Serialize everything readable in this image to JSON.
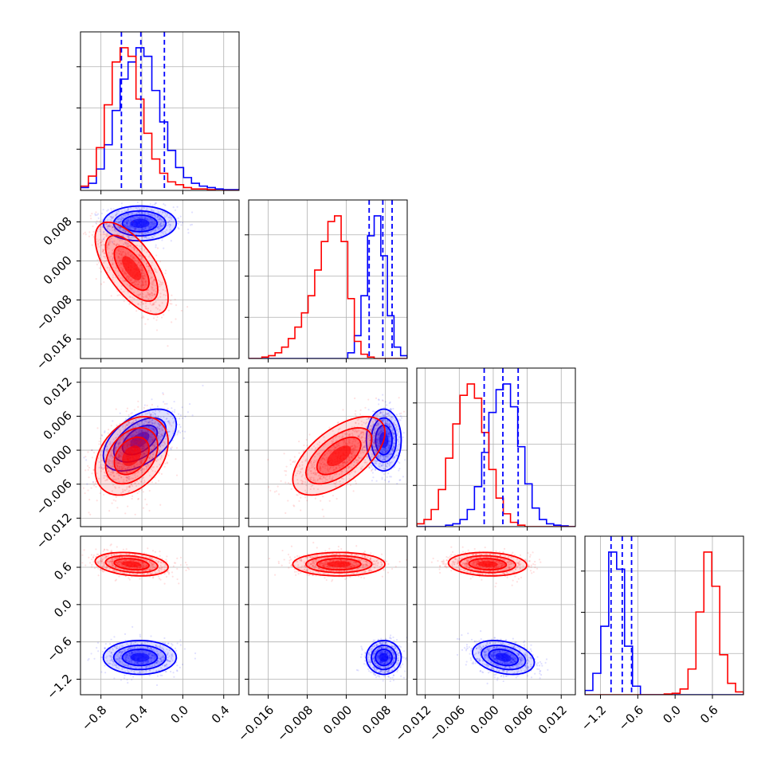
{
  "colors": {
    "series_a": "#0000ff",
    "series_b": "#ff0000",
    "grid": "#b0b0b0",
    "axes": "#000000"
  },
  "chart_data": {
    "type": "corner",
    "params": 4,
    "grid": true,
    "axes": [
      {
        "range": [
          -1.0,
          0.55
        ],
        "ticks": [
          -0.8,
          -0.4,
          0.0,
          0.4
        ],
        "tick_labels": [
          "−0.8",
          "−0.4",
          "0.0",
          "0.4"
        ]
      },
      {
        "range": [
          -0.02,
          0.0125
        ],
        "ticks": [
          -0.016,
          -0.008,
          0.0,
          0.008
        ],
        "tick_labels": [
          "−0.016",
          "−0.008",
          "0.000",
          "0.008"
        ]
      },
      {
        "range": [
          -0.0135,
          0.0145
        ],
        "ticks": [
          -0.012,
          -0.006,
          0.0,
          0.006,
          0.012
        ],
        "tick_labels": [
          "−0.012",
          "−0.006",
          "0.000",
          "0.006",
          "0.012"
        ]
      },
      {
        "range": [
          -1.45,
          1.1
        ],
        "ticks": [
          -1.2,
          -0.6,
          0.0,
          0.6
        ],
        "tick_labels": [
          "−1.2",
          "−0.6",
          "0.0",
          "0.6"
        ]
      }
    ],
    "series": [
      {
        "color": "#0000ff",
        "quantiles": [
          [
            -0.6,
            -0.41,
            -0.18
          ],
          [
            0.0047,
            0.0075,
            0.0094
          ],
          [
            -0.0016,
            0.0017,
            0.0044
          ],
          [
            -1.03,
            -0.85,
            -0.7
          ]
        ],
        "means": [
          -0.42,
          0.0077,
          0.0018,
          -0.85
        ],
        "stds": [
          0.17,
          0.0017,
          0.0026,
          0.13
        ],
        "corr": {
          "0-1": 0.0,
          "0-2": 0.5,
          "0-3": 0.0,
          "1-2": 0.0,
          "1-3": 0.0,
          "2-3": -0.3
        },
        "histograms": [
          {
            "lo": -1.0,
            "hi": 0.55,
            "counts": [
              0.2,
              0.5,
              1.5,
              3.2,
              5.6,
              7.8,
              9.0,
              10.0,
              9.4,
              7.0,
              4.8,
              2.8,
              1.6,
              0.9,
              0.5,
              0.3,
              0.2,
              0.1,
              0.05,
              0.05
            ]
          },
          {
            "lo": -0.02,
            "hi": 0.0125,
            "counts": [
              0,
              0,
              0,
              0,
              0,
              0,
              0,
              0,
              0,
              0,
              0,
              0,
              0,
              0,
              0,
              0.4,
              1.6,
              4.4,
              8.6,
              10.0,
              7.2,
              3.0,
              0.8,
              0.2
            ]
          },
          {
            "lo": -0.0135,
            "hi": 0.0145,
            "counts": [
              0,
              0,
              0,
              0,
              0.1,
              0.2,
              0.5,
              1.2,
              2.8,
              5.2,
              8.0,
              9.6,
              10.0,
              8.4,
              5.6,
              3.0,
              1.3,
              0.5,
              0.2,
              0.1,
              0.05,
              0
            ]
          },
          {
            "lo": -1.45,
            "hi": 1.1,
            "counts": [
              0.3,
              1.5,
              4.8,
              10.0,
              8.8,
              3.4,
              0.6,
              0,
              0,
              0,
              0,
              0,
              0,
              0,
              0,
              0,
              0,
              0,
              0,
              0
            ]
          }
        ]
      },
      {
        "color": "#ff0000",
        "means": [
          -0.5,
          -0.0015,
          -0.001,
          0.65
        ],
        "stds": [
          0.17,
          0.0045,
          0.0033,
          0.09
        ],
        "corr": {
          "0-1": -0.65,
          "0-2": 0.35,
          "0-3": -0.25,
          "1-2": 0.6,
          "1-3": 0.0,
          "2-3": -0.1
        },
        "histograms": [
          {
            "lo": -1.0,
            "hi": 0.55,
            "counts": [
              0.3,
              1.0,
              3.0,
              6.0,
              9.0,
              10.0,
              9.4,
              6.4,
              4.0,
              2.2,
              1.2,
              0.6,
              0.4,
              0.2,
              0.1,
              0.1,
              0.05,
              0,
              0,
              0
            ]
          },
          {
            "lo": -0.02,
            "hi": 0.0125,
            "counts": [
              0,
              0,
              0.1,
              0.2,
              0.4,
              0.8,
              1.4,
              2.2,
              3.2,
              4.4,
              6.2,
              8.2,
              9.6,
              10.0,
              8.2,
              4.2,
              1.2,
              0.3,
              0.1,
              0,
              0,
              0,
              0,
              0
            ]
          },
          {
            "lo": -0.0135,
            "hi": 0.0145,
            "counts": [
              0.2,
              0.5,
              1.2,
              2.6,
              4.8,
              7.2,
              9.2,
              10.0,
              9.0,
              6.6,
              4.0,
              2.0,
              0.9,
              0.3,
              0.1,
              0,
              0,
              0,
              0,
              0,
              0,
              0
            ]
          },
          {
            "lo": -1.45,
            "hi": 1.1,
            "counts": [
              0,
              0,
              0,
              0,
              0,
              0,
              0,
              0,
              0,
              0,
              0.05,
              0.1,
              0.4,
              1.8,
              5.8,
              10.0,
              7.6,
              2.8,
              0.8,
              0.2
            ]
          }
        ]
      }
    ]
  }
}
